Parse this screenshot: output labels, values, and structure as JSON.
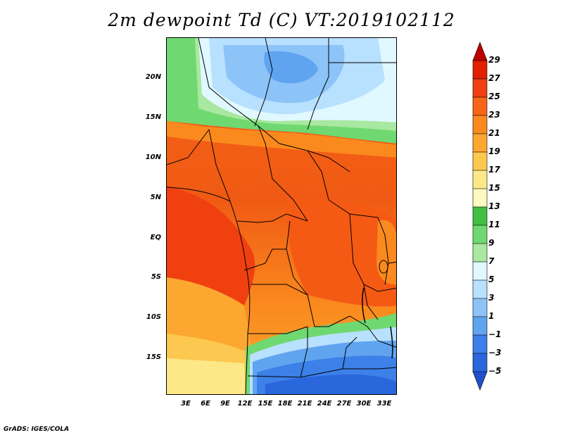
{
  "title": "2m dewpoint Td (C) VT:2019102112",
  "lat_labels": [
    "20N",
    "15N",
    "10N",
    "5N",
    "EQ",
    "5S",
    "10S",
    "15S"
  ],
  "lon_labels": [
    "3E",
    "6E",
    "9E",
    "12E",
    "15E",
    "18E",
    "21E",
    "24E",
    "27E",
    "30E",
    "33E"
  ],
  "colorbar": {
    "labels": [
      "29",
      "27",
      "25",
      "23",
      "21",
      "19",
      "17",
      "15",
      "13",
      "11",
      "9",
      "7",
      "5",
      "3",
      "1",
      "−1",
      "−3",
      "−5"
    ],
    "colors": [
      "#c00000",
      "#e02000",
      "#f04010",
      "#f86418",
      "#fa8a1e",
      "#fca830",
      "#fdc850",
      "#fde888",
      "#fff8c0",
      "#40c040",
      "#70d870",
      "#a8e8a0",
      "#e0f8ff",
      "#b8e0ff",
      "#8cc4f8",
      "#60a4f0",
      "#3c80e8",
      "#2a66dc",
      "#2050c8"
    ]
  },
  "credit": "GrADS: IGES/COLA"
}
